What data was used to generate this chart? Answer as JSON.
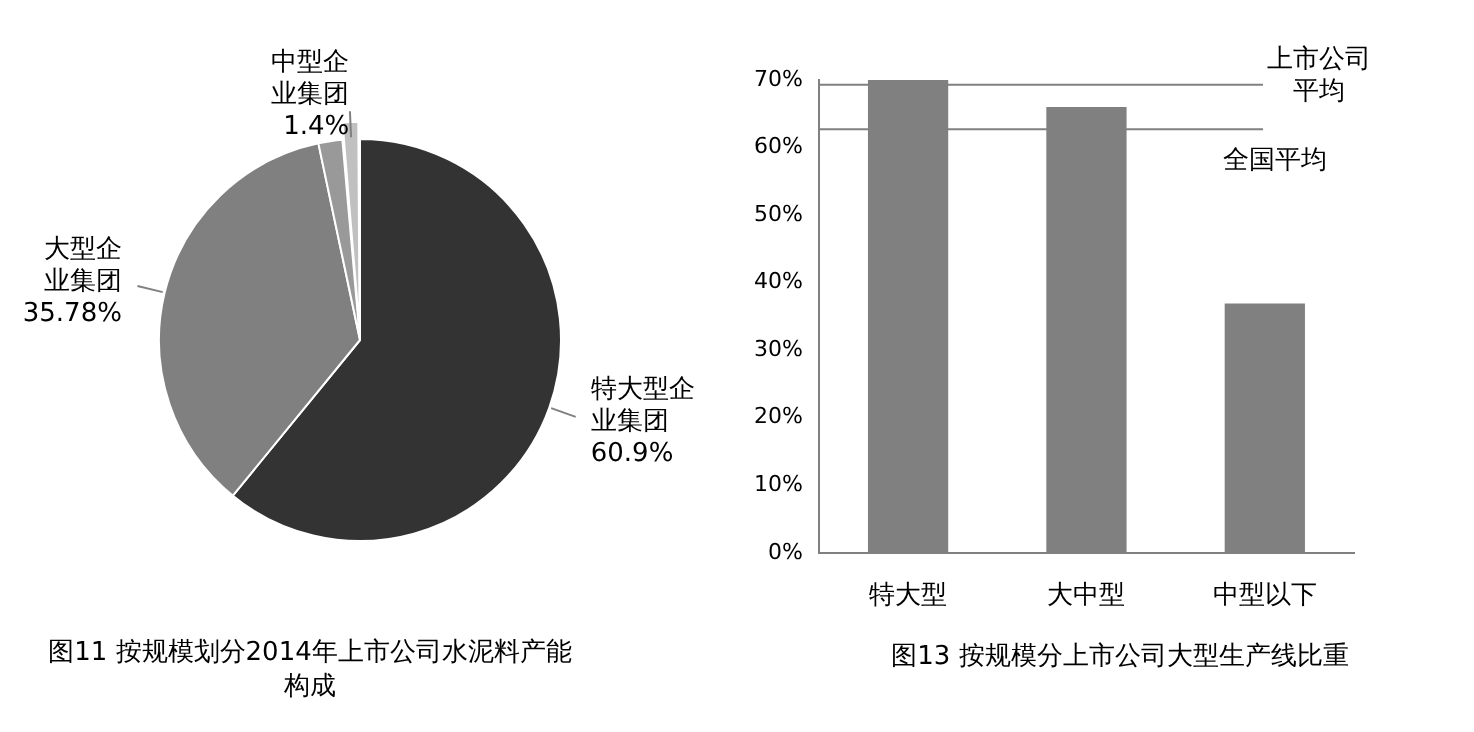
{
  "chart_data": [
    {
      "type": "pie",
      "title": "图11 按规模划分2014年上市公司水泥料产能构成",
      "categories": [
        "特大型企业集团",
        "大型企业集团",
        null,
        "中型企业集团"
      ],
      "values": [
        60.9,
        35.78,
        1.92,
        1.4
      ],
      "colors": [
        "#333333",
        "#808080",
        "#999999",
        "#c0c0c0"
      ],
      "value_labels": [
        "60.9%",
        "35.78%",
        null,
        "1.4%"
      ],
      "legend": false
    },
    {
      "type": "bar",
      "title": "图13 按规模分上市公司大型生产线比重",
      "categories": [
        "特大型",
        "大中型",
        "中型以下"
      ],
      "values": [
        70,
        66,
        36.9
      ],
      "color": "#808080",
      "ylim": [
        0,
        70
      ],
      "yticks": [
        {
          "value": 0,
          "label": "0%"
        },
        {
          "value": 10,
          "label": "10%"
        },
        {
          "value": 20,
          "label": "20%"
        },
        {
          "value": 30,
          "label": "30%"
        },
        {
          "value": 40,
          "label": "40%"
        },
        {
          "value": 50,
          "label": "50%"
        },
        {
          "value": 60,
          "label": "60%"
        },
        {
          "value": 70,
          "label": "70%"
        }
      ],
      "ref_lines": [
        {
          "axis": "y",
          "value": 69.3,
          "label": "上市公司平均",
          "color": "#808080"
        },
        {
          "axis": "y",
          "value": 62.7,
          "label": "全国平均",
          "color": "#808080"
        }
      ],
      "grid": false,
      "legend": false
    }
  ]
}
